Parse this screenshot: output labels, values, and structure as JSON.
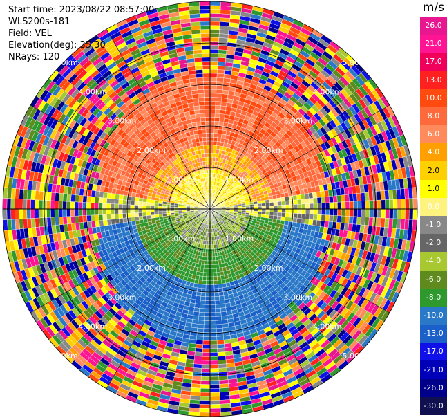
{
  "header": {
    "start_time": "Start time: 2023/08/22 08:57:00",
    "instrument": "WLS200s-181",
    "field": "Field: VEL",
    "elevation": "Elevation(deg): 35.30",
    "nrays": "NRays: 120"
  },
  "colorbar": {
    "unit": "m/s",
    "ticks": [
      "26.0",
      "21.0",
      "17.0",
      "13.0",
      "10.0",
      "8.0",
      "6.0",
      "4.0",
      "2.0",
      "1.0",
      "0.0",
      "-1.0",
      "-2.0",
      "-4.0",
      "-6.0",
      "-8.0",
      "-10.0",
      "-13.0",
      "-17.0",
      "-21.0",
      "-26.0",
      "-30.0"
    ],
    "colors": [
      "#e8168f",
      "#ff1493",
      "#f0005a",
      "#ff2020",
      "#ff4a10",
      "#ff6a3c",
      "#ff8a5c",
      "#ffa000",
      "#ffd000",
      "#ffff00",
      "#fff380",
      "#888888",
      "#666666",
      "#a8c832",
      "#5f8a1e",
      "#2e9a2e",
      "#2a78c8",
      "#1a60c8",
      "#1010e8",
      "#0000b8",
      "#00008a",
      "#101050"
    ]
  },
  "range_rings": {
    "labels": [
      "1.00km",
      "2.00km",
      "3.00km",
      "4.00km",
      "5.00km"
    ]
  }
}
